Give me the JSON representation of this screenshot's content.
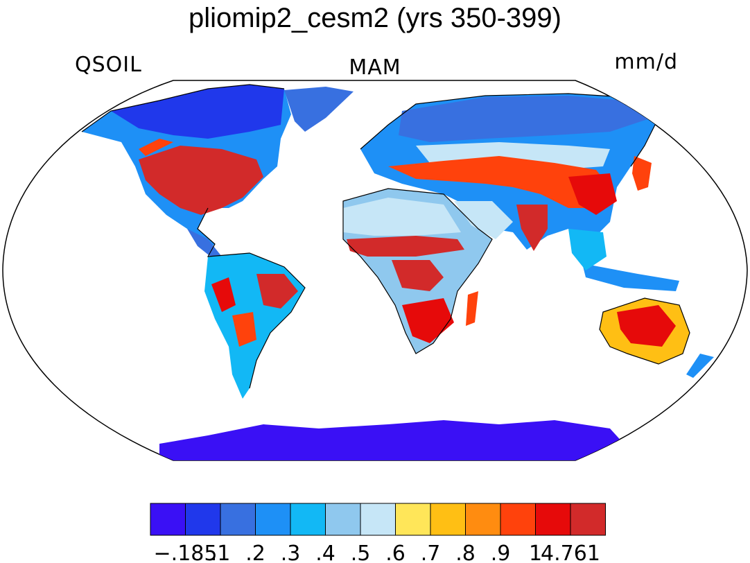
{
  "title": "pliomip2_cesm2 (yrs 350-399)",
  "left_string": "QSOIL",
  "center_string": "MAM",
  "right_string": "mm/d",
  "colorbar": {
    "colors": [
      "#3a10f5",
      "#2038eb",
      "#3870e0",
      "#1e90f6",
      "#12b8f5",
      "#8fc8ee",
      "#c6e6f7",
      "#ffe659",
      "#ffbf14",
      "#ff8c10",
      "#ff420c",
      "#e60a0a",
      "#d22a2a"
    ],
    "labels": [
      "−.185",
      ".1",
      ".2",
      ".3",
      ".4",
      ".5",
      ".6",
      ".7",
      ".8",
      ".9",
      "1",
      "4.761"
    ]
  },
  "map": {
    "projection": "Robinson",
    "variable": "QSOIL",
    "season": "MAM",
    "units": "mm/d",
    "ocean_color": "#ffffff",
    "coastline_color": "#000000"
  }
}
